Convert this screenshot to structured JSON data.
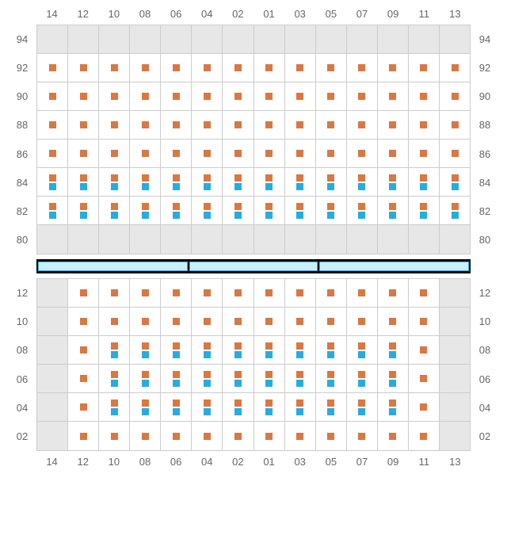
{
  "colors": {
    "orange": "#d97843",
    "blue": "#29abe2",
    "gray": "#e7e7e7",
    "grid": "#cccccc",
    "label": "#666666"
  },
  "cols": [
    "14",
    "12",
    "10",
    "08",
    "06",
    "04",
    "02",
    "01",
    "03",
    "05",
    "07",
    "09",
    "11",
    "13"
  ],
  "top": {
    "rows": [
      "94",
      "92",
      "90",
      "88",
      "86",
      "84",
      "82",
      "80"
    ],
    "grayRows": [
      "94",
      "80"
    ],
    "cells": {
      "92": {
        "cols": [
          "14",
          "12",
          "10",
          "08",
          "06",
          "04",
          "02",
          "01",
          "03",
          "05",
          "07",
          "09",
          "11",
          "13"
        ],
        "markers": [
          "o"
        ]
      },
      "90": {
        "cols": [
          "14",
          "12",
          "10",
          "08",
          "06",
          "04",
          "02",
          "01",
          "03",
          "05",
          "07",
          "09",
          "11",
          "13"
        ],
        "markers": [
          "o"
        ]
      },
      "88": {
        "cols": [
          "14",
          "12",
          "10",
          "08",
          "06",
          "04",
          "02",
          "01",
          "03",
          "05",
          "07",
          "09",
          "11",
          "13"
        ],
        "markers": [
          "o"
        ]
      },
      "86": {
        "cols": [
          "14",
          "12",
          "10",
          "08",
          "06",
          "04",
          "02",
          "01",
          "03",
          "05",
          "07",
          "09",
          "11",
          "13"
        ],
        "markers": [
          "o"
        ]
      },
      "84": {
        "cols": [
          "14",
          "12",
          "10",
          "08",
          "06",
          "04",
          "02",
          "01",
          "03",
          "05",
          "07",
          "09",
          "11",
          "13"
        ],
        "markers": [
          "o",
          "b"
        ]
      },
      "82": {
        "cols": [
          "14",
          "12",
          "10",
          "08",
          "06",
          "04",
          "02",
          "01",
          "03",
          "05",
          "07",
          "09",
          "11",
          "13"
        ],
        "markers": [
          "o",
          "b"
        ]
      }
    }
  },
  "bottom": {
    "rows": [
      "12",
      "10",
      "08",
      "06",
      "04",
      "02"
    ],
    "grayCols": [
      "14",
      "13"
    ],
    "cells": {
      "12": {
        "cols": [
          "12",
          "10",
          "08",
          "06",
          "04",
          "02",
          "01",
          "03",
          "05",
          "07",
          "09",
          "11"
        ],
        "markers": {
          "default": [
            "o"
          ]
        }
      },
      "10": {
        "cols": [
          "12",
          "10",
          "08",
          "06",
          "04",
          "02",
          "01",
          "03",
          "05",
          "07",
          "09",
          "11"
        ],
        "markers": {
          "default": [
            "o"
          ]
        }
      },
      "08": {
        "cols": [
          "12",
          "10",
          "08",
          "06",
          "04",
          "02",
          "01",
          "03",
          "05",
          "07",
          "09",
          "11"
        ],
        "markers": {
          "default": [
            "o",
            "b"
          ],
          "12": [
            "o"
          ],
          "11": [
            "o"
          ]
        }
      },
      "06": {
        "cols": [
          "12",
          "10",
          "08",
          "06",
          "04",
          "02",
          "01",
          "03",
          "05",
          "07",
          "09",
          "11"
        ],
        "markers": {
          "default": [
            "o",
            "b"
          ],
          "12": [
            "o"
          ],
          "11": [
            "o"
          ]
        }
      },
      "04": {
        "cols": [
          "12",
          "10",
          "08",
          "06",
          "04",
          "02",
          "01",
          "03",
          "05",
          "07",
          "09",
          "11"
        ],
        "markers": {
          "default": [
            "o",
            "b"
          ],
          "12": [
            "o"
          ],
          "11": [
            "o"
          ]
        }
      },
      "02": {
        "cols": [
          "12",
          "10",
          "08",
          "06",
          "04",
          "02",
          "01",
          "03",
          "05",
          "07",
          "09",
          "11"
        ],
        "markers": {
          "default": [
            "o"
          ]
        }
      }
    }
  }
}
